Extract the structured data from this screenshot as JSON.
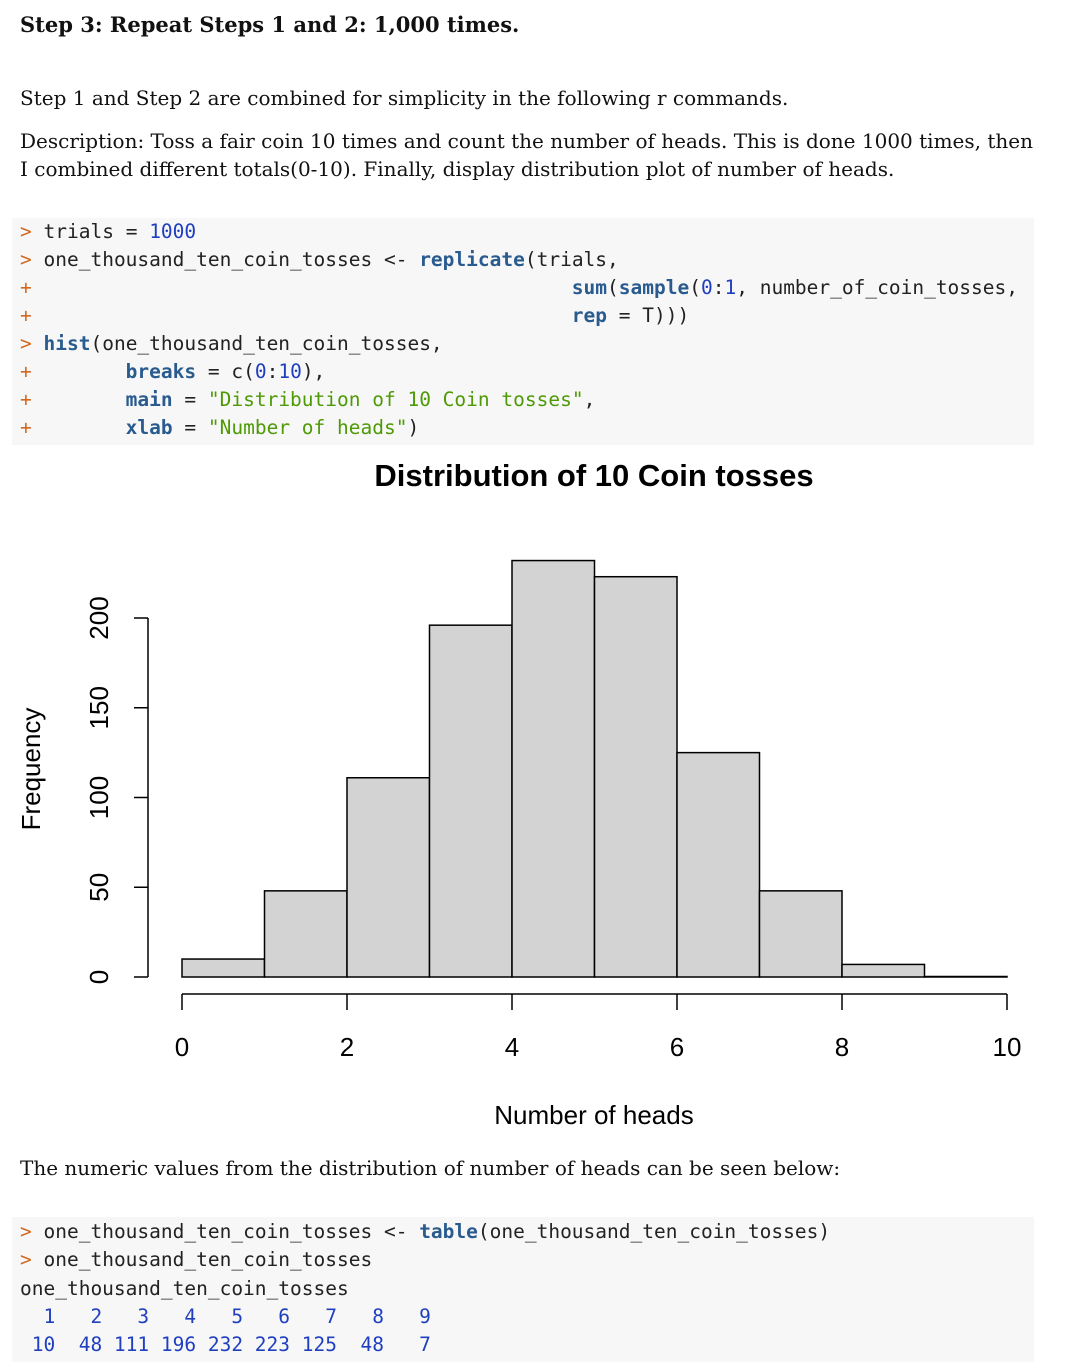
{
  "heading": "Step 3: Repeat Steps 1 and 2: 1,000 times.",
  "paragraphs": {
    "intro": "Step 1 and Step 2 are combined for simplicity in the following r commands.",
    "description": "Description: Toss a fair coin 10 times and count the number of heads. This is done 1000 times, then I combined different totals(0-10). Finally, display distribution plot of number of heads.",
    "below": "The numeric values from the distribution of number of heads can be seen below:"
  },
  "code1": {
    "line1": {
      "prompt": ">",
      "a": "trials",
      "b": " = ",
      "c": "1000"
    },
    "line2": {
      "prompt": ">",
      "a": "one_thousand_ten_coin_tosses <- ",
      "fn": "replicate",
      "b": "(trials,"
    },
    "line3": {
      "prompt": "+",
      "fn1": "sum",
      "b": "(",
      "fn2": "sample",
      "c": "(",
      "n1": "0",
      "d": ":",
      "n2": "1",
      "e": ", number_of_coin_tosses,"
    },
    "line4": {
      "prompt": "+",
      "a": "rep",
      "b": " = T)))"
    },
    "line5": {
      "prompt": ">",
      "fn": "hist",
      "b": "(one_thousand_ten_coin_tosses,"
    },
    "line6": {
      "prompt": "+",
      "a": "breaks",
      "b": " = c(",
      "n1": "0",
      "c": ":",
      "n2": "10",
      "d": "),"
    },
    "line7": {
      "prompt": "+",
      "a": "main",
      "b": " = ",
      "s": "\"Distribution of 10 Coin tosses\"",
      "c": ","
    },
    "line8": {
      "prompt": "+",
      "a": "xlab",
      "b": " = ",
      "s": "\"Number of heads\"",
      "c": ")"
    }
  },
  "code2": {
    "line1": {
      "prompt": ">",
      "a": "one_thousand_ten_coin_tosses <- ",
      "fn": "table",
      "b": "(one_thousand_ten_coin_tosses)"
    },
    "line2": {
      "prompt": ">",
      "a": "one_thousand_ten_coin_tosses"
    },
    "line3": "one_thousand_ten_coin_tosses",
    "line4": "  1   2   3   4   5   6   7   8   9",
    "line5": " 10  48 111 196 232 223 125  48   7"
  },
  "chart_data": {
    "type": "bar",
    "title": "Distribution of 10 Coin tosses",
    "xlabel": "Number of heads",
    "ylabel": "Frequency",
    "bins": [
      [
        0,
        1
      ],
      [
        1,
        2
      ],
      [
        2,
        3
      ],
      [
        3,
        4
      ],
      [
        4,
        5
      ],
      [
        5,
        6
      ],
      [
        6,
        7
      ],
      [
        7,
        8
      ],
      [
        8,
        9
      ],
      [
        9,
        10
      ]
    ],
    "values": [
      10,
      48,
      111,
      196,
      232,
      223,
      125,
      48,
      7,
      0
    ],
    "xlim": [
      0,
      10
    ],
    "ylim": [
      0,
      200
    ],
    "xticks": [
      "0",
      "2",
      "4",
      "6",
      "8",
      "10"
    ],
    "yticks": [
      "0",
      "50",
      "100",
      "150",
      "200"
    ],
    "grid": false,
    "colors": {
      "bar_fill": "#d3d3d3",
      "bar_stroke": "#000000"
    }
  }
}
